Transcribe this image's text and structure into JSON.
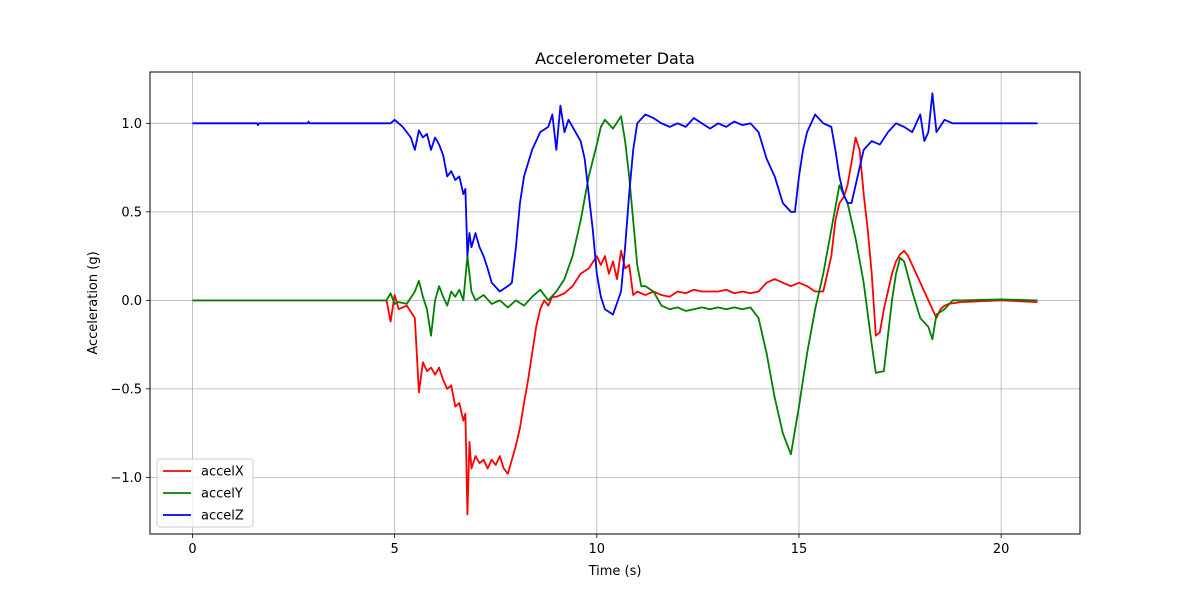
{
  "chart_data": {
    "type": "line",
    "title": "Accelerometer Data",
    "xlabel": "Time (s)",
    "ylabel": "Acceleration (g)",
    "xlim": [
      -1.05,
      21.95
    ],
    "ylim": [
      -1.32,
      1.29
    ],
    "xticks": [
      0,
      5,
      10,
      15,
      20
    ],
    "xtick_labels": [
      "0",
      "5",
      "10",
      "15",
      "20"
    ],
    "yticks": [
      -1.0,
      -0.5,
      0.0,
      0.5,
      1.0
    ],
    "ytick_labels": [
      "−1.0",
      "−0.5",
      "0.0",
      "0.5",
      "1.0"
    ],
    "grid": true,
    "legend_position": "lower-left",
    "series": [
      {
        "name": "accelX",
        "color": "#ff0000",
        "points": [
          [
            0,
            0
          ],
          [
            4.8,
            0
          ],
          [
            4.9,
            -0.12
          ],
          [
            5.0,
            0.03
          ],
          [
            5.1,
            -0.05
          ],
          [
            5.3,
            -0.03
          ],
          [
            5.5,
            -0.1
          ],
          [
            5.6,
            -0.52
          ],
          [
            5.7,
            -0.35
          ],
          [
            5.8,
            -0.4
          ],
          [
            5.9,
            -0.38
          ],
          [
            6.0,
            -0.42
          ],
          [
            6.1,
            -0.38
          ],
          [
            6.2,
            -0.45
          ],
          [
            6.3,
            -0.5
          ],
          [
            6.4,
            -0.48
          ],
          [
            6.5,
            -0.6
          ],
          [
            6.6,
            -0.58
          ],
          [
            6.7,
            -0.68
          ],
          [
            6.75,
            -0.64
          ],
          [
            6.8,
            -1.21
          ],
          [
            6.85,
            -0.8
          ],
          [
            6.9,
            -0.95
          ],
          [
            7.0,
            -0.88
          ],
          [
            7.1,
            -0.92
          ],
          [
            7.2,
            -0.9
          ],
          [
            7.3,
            -0.95
          ],
          [
            7.4,
            -0.9
          ],
          [
            7.5,
            -0.93
          ],
          [
            7.6,
            -0.88
          ],
          [
            7.7,
            -0.95
          ],
          [
            7.8,
            -0.98
          ],
          [
            7.9,
            -0.9
          ],
          [
            8.0,
            -0.82
          ],
          [
            8.1,
            -0.72
          ],
          [
            8.2,
            -0.58
          ],
          [
            8.3,
            -0.45
          ],
          [
            8.4,
            -0.3
          ],
          [
            8.5,
            -0.15
          ],
          [
            8.6,
            -0.05
          ],
          [
            8.7,
            0.0
          ],
          [
            8.8,
            -0.03
          ],
          [
            8.9,
            0.02
          ],
          [
            9.0,
            0.02
          ],
          [
            9.2,
            0.04
          ],
          [
            9.4,
            0.08
          ],
          [
            9.6,
            0.15
          ],
          [
            9.8,
            0.18
          ],
          [
            10.0,
            0.25
          ],
          [
            10.1,
            0.2
          ],
          [
            10.2,
            0.25
          ],
          [
            10.3,
            0.15
          ],
          [
            10.4,
            0.22
          ],
          [
            10.5,
            0.12
          ],
          [
            10.6,
            0.28
          ],
          [
            10.7,
            0.18
          ],
          [
            10.8,
            0.2
          ],
          [
            10.9,
            0.03
          ],
          [
            11.0,
            0.05
          ],
          [
            11.2,
            0.03
          ],
          [
            11.4,
            0.05
          ],
          [
            11.6,
            0.03
          ],
          [
            11.8,
            0.02
          ],
          [
            12.0,
            0.05
          ],
          [
            12.2,
            0.04
          ],
          [
            12.4,
            0.06
          ],
          [
            12.6,
            0.05
          ],
          [
            12.8,
            0.05
          ],
          [
            13.0,
            0.05
          ],
          [
            13.2,
            0.06
          ],
          [
            13.4,
            0.04
          ],
          [
            13.6,
            0.05
          ],
          [
            13.8,
            0.04
          ],
          [
            14.0,
            0.05
          ],
          [
            14.2,
            0.1
          ],
          [
            14.4,
            0.12
          ],
          [
            14.6,
            0.1
          ],
          [
            14.8,
            0.08
          ],
          [
            15.0,
            0.1
          ],
          [
            15.2,
            0.08
          ],
          [
            15.4,
            0.05
          ],
          [
            15.6,
            0.05
          ],
          [
            15.7,
            0.15
          ],
          [
            15.8,
            0.25
          ],
          [
            15.9,
            0.45
          ],
          [
            16.0,
            0.55
          ],
          [
            16.1,
            0.58
          ],
          [
            16.2,
            0.65
          ],
          [
            16.3,
            0.78
          ],
          [
            16.4,
            0.92
          ],
          [
            16.5,
            0.85
          ],
          [
            16.6,
            0.6
          ],
          [
            16.7,
            0.4
          ],
          [
            16.8,
            0.15
          ],
          [
            16.9,
            -0.2
          ],
          [
            17.0,
            -0.18
          ],
          [
            17.1,
            -0.05
          ],
          [
            17.2,
            0.05
          ],
          [
            17.3,
            0.15
          ],
          [
            17.4,
            0.22
          ],
          [
            17.5,
            0.26
          ],
          [
            17.6,
            0.28
          ],
          [
            17.7,
            0.25
          ],
          [
            17.8,
            0.2
          ],
          [
            17.9,
            0.15
          ],
          [
            18.0,
            0.1
          ],
          [
            18.1,
            0.05
          ],
          [
            18.2,
            0.0
          ],
          [
            18.3,
            -0.05
          ],
          [
            18.4,
            -0.1
          ],
          [
            18.5,
            -0.05
          ],
          [
            18.6,
            -0.03
          ],
          [
            18.7,
            -0.02
          ],
          [
            19.0,
            -0.01
          ],
          [
            20.0,
            0
          ],
          [
            20.9,
            -0.01
          ]
        ]
      },
      {
        "name": "accelY",
        "color": "#008000",
        "points": [
          [
            0,
            0
          ],
          [
            4.8,
            0
          ],
          [
            4.9,
            0.04
          ],
          [
            5.0,
            -0.02
          ],
          [
            5.1,
            -0.01
          ],
          [
            5.3,
            -0.02
          ],
          [
            5.5,
            0.05
          ],
          [
            5.6,
            0.11
          ],
          [
            5.7,
            0.02
          ],
          [
            5.8,
            -0.05
          ],
          [
            5.9,
            -0.2
          ],
          [
            6.0,
            0.0
          ],
          [
            6.1,
            0.08
          ],
          [
            6.2,
            0.02
          ],
          [
            6.3,
            -0.03
          ],
          [
            6.4,
            0.05
          ],
          [
            6.5,
            0.02
          ],
          [
            6.6,
            0.06
          ],
          [
            6.7,
            0.0
          ],
          [
            6.8,
            0.25
          ],
          [
            6.9,
            0.05
          ],
          [
            7.0,
            0.0
          ],
          [
            7.2,
            0.03
          ],
          [
            7.4,
            -0.02
          ],
          [
            7.6,
            0.0
          ],
          [
            7.8,
            -0.04
          ],
          [
            8.0,
            0.0
          ],
          [
            8.2,
            -0.03
          ],
          [
            8.4,
            0.02
          ],
          [
            8.6,
            0.06
          ],
          [
            8.8,
            0.0
          ],
          [
            9.0,
            0.05
          ],
          [
            9.2,
            0.12
          ],
          [
            9.4,
            0.25
          ],
          [
            9.6,
            0.45
          ],
          [
            9.8,
            0.7
          ],
          [
            10.0,
            0.88
          ],
          [
            10.1,
            0.98
          ],
          [
            10.2,
            1.02
          ],
          [
            10.4,
            0.97
          ],
          [
            10.6,
            1.04
          ],
          [
            10.7,
            0.9
          ],
          [
            10.8,
            0.7
          ],
          [
            10.9,
            0.45
          ],
          [
            11.0,
            0.2
          ],
          [
            11.1,
            0.08
          ],
          [
            11.2,
            0.08
          ],
          [
            11.4,
            0.05
          ],
          [
            11.6,
            -0.03
          ],
          [
            11.8,
            -0.05
          ],
          [
            12.0,
            -0.04
          ],
          [
            12.2,
            -0.06
          ],
          [
            12.4,
            -0.05
          ],
          [
            12.6,
            -0.04
          ],
          [
            12.8,
            -0.05
          ],
          [
            13.0,
            -0.04
          ],
          [
            13.2,
            -0.05
          ],
          [
            13.4,
            -0.04
          ],
          [
            13.6,
            -0.05
          ],
          [
            13.8,
            -0.04
          ],
          [
            14.0,
            -0.1
          ],
          [
            14.2,
            -0.3
          ],
          [
            14.4,
            -0.55
          ],
          [
            14.6,
            -0.75
          ],
          [
            14.8,
            -0.87
          ],
          [
            15.0,
            -0.6
          ],
          [
            15.2,
            -0.3
          ],
          [
            15.4,
            -0.05
          ],
          [
            15.6,
            0.15
          ],
          [
            15.8,
            0.4
          ],
          [
            16.0,
            0.65
          ],
          [
            16.2,
            0.55
          ],
          [
            16.4,
            0.35
          ],
          [
            16.6,
            0.1
          ],
          [
            16.8,
            -0.25
          ],
          [
            16.9,
            -0.41
          ],
          [
            17.1,
            -0.4
          ],
          [
            17.2,
            -0.2
          ],
          [
            17.3,
            0.0
          ],
          [
            17.4,
            0.15
          ],
          [
            17.5,
            0.24
          ],
          [
            17.6,
            0.22
          ],
          [
            17.8,
            0.05
          ],
          [
            18.0,
            -0.1
          ],
          [
            18.2,
            -0.15
          ],
          [
            18.3,
            -0.22
          ],
          [
            18.4,
            -0.08
          ],
          [
            18.6,
            -0.05
          ],
          [
            18.8,
            0.0
          ],
          [
            19.0,
            0.0
          ],
          [
            20.0,
            0.005
          ],
          [
            20.9,
            0.0
          ]
        ]
      },
      {
        "name": "accelZ",
        "color": "#0000ff",
        "points": [
          [
            0,
            1.0
          ],
          [
            1.6,
            1.0
          ],
          [
            1.62,
            0.99
          ],
          [
            1.65,
            1.0
          ],
          [
            2.85,
            1.0
          ],
          [
            2.87,
            1.01
          ],
          [
            2.9,
            1.0
          ],
          [
            4.9,
            1.0
          ],
          [
            5.0,
            1.02
          ],
          [
            5.2,
            0.98
          ],
          [
            5.4,
            0.92
          ],
          [
            5.5,
            0.85
          ],
          [
            5.6,
            0.96
          ],
          [
            5.7,
            0.92
          ],
          [
            5.8,
            0.94
          ],
          [
            5.9,
            0.85
          ],
          [
            6.0,
            0.92
          ],
          [
            6.1,
            0.88
          ],
          [
            6.2,
            0.82
          ],
          [
            6.3,
            0.7
          ],
          [
            6.4,
            0.73
          ],
          [
            6.5,
            0.68
          ],
          [
            6.6,
            0.7
          ],
          [
            6.7,
            0.6
          ],
          [
            6.75,
            0.63
          ],
          [
            6.8,
            0.25
          ],
          [
            6.85,
            0.38
          ],
          [
            6.9,
            0.3
          ],
          [
            7.0,
            0.38
          ],
          [
            7.1,
            0.3
          ],
          [
            7.2,
            0.25
          ],
          [
            7.3,
            0.18
          ],
          [
            7.4,
            0.1
          ],
          [
            7.6,
            0.05
          ],
          [
            7.8,
            0.08
          ],
          [
            7.9,
            0.1
          ],
          [
            8.0,
            0.3
          ],
          [
            8.1,
            0.55
          ],
          [
            8.2,
            0.7
          ],
          [
            8.4,
            0.85
          ],
          [
            8.6,
            0.95
          ],
          [
            8.8,
            0.98
          ],
          [
            8.9,
            1.05
          ],
          [
            9.0,
            0.85
          ],
          [
            9.1,
            1.1
          ],
          [
            9.2,
            0.95
          ],
          [
            9.3,
            1.02
          ],
          [
            9.4,
            0.98
          ],
          [
            9.6,
            0.9
          ],
          [
            9.7,
            0.8
          ],
          [
            9.8,
            0.6
          ],
          [
            9.9,
            0.4
          ],
          [
            10.0,
            0.15
          ],
          [
            10.1,
            0.02
          ],
          [
            10.2,
            -0.05
          ],
          [
            10.4,
            -0.08
          ],
          [
            10.6,
            0.05
          ],
          [
            10.7,
            0.3
          ],
          [
            10.8,
            0.6
          ],
          [
            10.9,
            0.85
          ],
          [
            11.0,
            1.0
          ],
          [
            11.2,
            1.05
          ],
          [
            11.4,
            1.03
          ],
          [
            11.6,
            1.0
          ],
          [
            11.8,
            0.98
          ],
          [
            12.0,
            1.0
          ],
          [
            12.2,
            0.98
          ],
          [
            12.4,
            1.03
          ],
          [
            12.6,
            1.0
          ],
          [
            12.8,
            0.97
          ],
          [
            13.0,
            1.0
          ],
          [
            13.2,
            0.98
          ],
          [
            13.4,
            1.01
          ],
          [
            13.6,
            0.99
          ],
          [
            13.8,
            1.0
          ],
          [
            14.0,
            0.95
          ],
          [
            14.2,
            0.8
          ],
          [
            14.4,
            0.7
          ],
          [
            14.6,
            0.55
          ],
          [
            14.8,
            0.5
          ],
          [
            14.9,
            0.5
          ],
          [
            15.0,
            0.7
          ],
          [
            15.1,
            0.85
          ],
          [
            15.2,
            0.95
          ],
          [
            15.3,
            1.0
          ],
          [
            15.4,
            1.05
          ],
          [
            15.6,
            1.0
          ],
          [
            15.8,
            0.98
          ],
          [
            15.9,
            0.85
          ],
          [
            16.0,
            0.7
          ],
          [
            16.1,
            0.6
          ],
          [
            16.2,
            0.55
          ],
          [
            16.3,
            0.55
          ],
          [
            16.4,
            0.65
          ],
          [
            16.5,
            0.75
          ],
          [
            16.6,
            0.85
          ],
          [
            16.8,
            0.9
          ],
          [
            17.0,
            0.88
          ],
          [
            17.2,
            0.95
          ],
          [
            17.4,
            1.0
          ],
          [
            17.6,
            0.98
          ],
          [
            17.8,
            0.95
          ],
          [
            18.0,
            1.05
          ],
          [
            18.1,
            0.9
          ],
          [
            18.2,
            0.95
          ],
          [
            18.3,
            1.17
          ],
          [
            18.4,
            0.95
          ],
          [
            18.6,
            1.02
          ],
          [
            18.8,
            1.0
          ],
          [
            19.0,
            1.0
          ],
          [
            20.0,
            1.0
          ],
          [
            20.9,
            1.0
          ]
        ]
      }
    ]
  }
}
